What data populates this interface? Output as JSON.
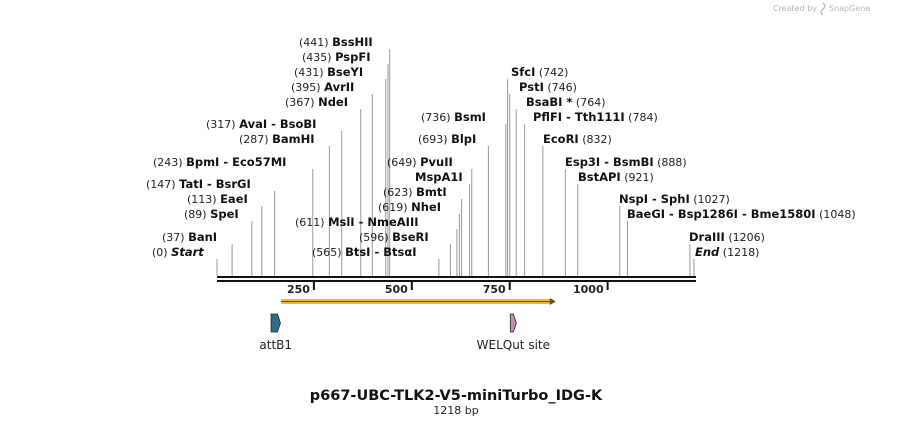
{
  "credit": {
    "prefix": "Created by",
    "brand": "SnapGene"
  },
  "title": "p667-UBC-TLK2-V5-miniTurbo_IDG-K",
  "length_label": "1218 bp",
  "sequence_length": 1218,
  "ruler": {
    "ticks": [
      250,
      500,
      750,
      1000
    ]
  },
  "sites": [
    {
      "text": "(0)",
      "enzymes": [
        "Start"
      ],
      "pos": 0,
      "italic": true
    },
    {
      "text": "(37)",
      "enzymes": [
        "BanI"
      ],
      "pos": 37
    },
    {
      "text": "(89)",
      "enzymes": [
        "SpeI"
      ],
      "pos": 89
    },
    {
      "text": "(113)",
      "enzymes": [
        "EaeI"
      ],
      "pos": 113
    },
    {
      "text": "(147)",
      "enzymes": [
        "TatI",
        "BsrGI"
      ],
      "pos": 147
    },
    {
      "text": "(243)",
      "enzymes": [
        "BpmI",
        "Eco57MI"
      ],
      "pos": 243
    },
    {
      "text": "(287)",
      "enzymes": [
        "BamHI"
      ],
      "pos": 287
    },
    {
      "text": "(317)",
      "enzymes": [
        "AvaI",
        "BsoBI"
      ],
      "pos": 317
    },
    {
      "text": "(367)",
      "enzymes": [
        "NdeI"
      ],
      "pos": 367
    },
    {
      "text": "(395)",
      "enzymes": [
        "AvrII"
      ],
      "pos": 395
    },
    {
      "text": "(431)",
      "enzymes": [
        "BseYI"
      ],
      "pos": 431
    },
    {
      "text": "(435)",
      "enzymes": [
        "PspFI"
      ],
      "pos": 435
    },
    {
      "text": "(441)",
      "enzymes": [
        "BssHII"
      ],
      "pos": 441
    },
    {
      "text": "(565)",
      "enzymes": [
        "BtsI",
        "BtsαI"
      ],
      "pos": 565
    },
    {
      "text": "(596)",
      "enzymes": [
        "BseRI"
      ],
      "pos": 596
    },
    {
      "text": "(611)",
      "enzymes": [
        "MslI",
        "NmeAIII"
      ],
      "pos": 611
    },
    {
      "text": "(619)",
      "enzymes": [
        "NheI"
      ],
      "pos": 619
    },
    {
      "text": "(623)",
      "enzymes": [
        "BmtI"
      ],
      "pos": 623
    },
    {
      "text": "",
      "enzymes": [
        "MspA1I"
      ],
      "pos": 645
    },
    {
      "text": "(649)",
      "enzymes": [
        "PvuII"
      ],
      "pos": 649
    },
    {
      "text": "(693)",
      "enzymes": [
        "BlpI"
      ],
      "pos": 693
    },
    {
      "text": "(736)",
      "enzymes": [
        "BsmI"
      ],
      "pos": 736
    },
    {
      "text": "(742)",
      "enzymes": [
        "SfcI"
      ],
      "pos": 742
    },
    {
      "text": "(746)",
      "enzymes": [
        "PstI"
      ],
      "pos": 746
    },
    {
      "text": "(764)",
      "enzymes": [
        "BsaBI *"
      ],
      "pos": 764
    },
    {
      "text": "(784)",
      "enzymes": [
        "PflFI",
        "Tth111I"
      ],
      "pos": 784
    },
    {
      "text": "(832)",
      "enzymes": [
        "EcoRI"
      ],
      "pos": 832
    },
    {
      "text": "(888)",
      "enzymes": [
        "Esp3I",
        "BsmBI"
      ],
      "pos": 888
    },
    {
      "text": "(921)",
      "enzymes": [
        "BstAPI"
      ],
      "pos": 921
    },
    {
      "text": "(1027)",
      "enzymes": [
        "NspI",
        "SphI"
      ],
      "pos": 1027
    },
    {
      "text": "(1048)",
      "enzymes": [
        "BaeGI",
        "Bsp1286I",
        "Bme1580I"
      ],
      "pos": 1048
    },
    {
      "text": "(1206)",
      "enzymes": [
        "DraIII"
      ],
      "pos": 1206
    },
    {
      "text": "(1218)",
      "enzymes": [
        "End"
      ],
      "pos": 1218,
      "italic": true
    }
  ],
  "features": [
    {
      "name": "attB1",
      "start": 138,
      "end": 162,
      "color": "#2f6d86"
    },
    {
      "name": "WELQut site",
      "start": 749,
      "end": 764,
      "color": "#c98fb2"
    }
  ],
  "primer_bar": {
    "start": 164,
    "end": 865,
    "color": "#f0b640"
  }
}
